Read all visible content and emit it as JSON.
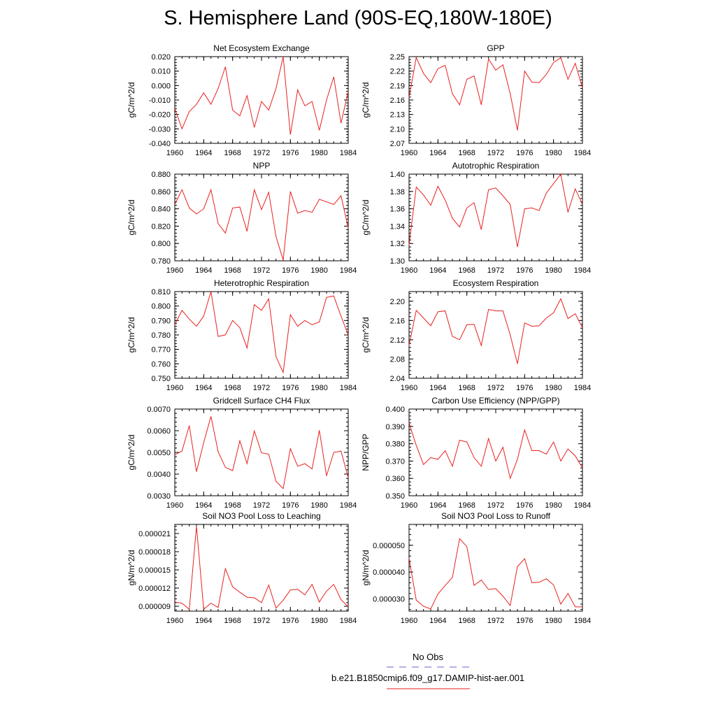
{
  "title": "S. Hemisphere Land (90S-EQ,180W-180E)",
  "series_color": "#e8211f",
  "obs_color": "#6666cc",
  "legend": {
    "obs_label": "No Obs",
    "case_label": "b.e21.B1850cmip6.f09_g17.DAMIP-hist-aer.001"
  },
  "chart_data": [
    {
      "type": "line",
      "title": "Net Ecosystem Exchange",
      "ylabel": "gC/m^2/d",
      "xlim": [
        1960,
        1984
      ],
      "xticks": [
        "1960",
        "1964",
        "1968",
        "1972",
        "1976",
        "1980",
        "1984"
      ],
      "ylim": [
        -0.04,
        0.02
      ],
      "yticks": [
        "-0.040",
        "-0.030",
        "-0.020",
        "-0.010",
        "0.000",
        "0.010",
        "0.020"
      ],
      "x": [
        1960,
        1961,
        1962,
        1963,
        1964,
        1965,
        1966,
        1967,
        1968,
        1969,
        1970,
        1971,
        1972,
        1973,
        1974,
        1975,
        1976,
        1977,
        1978,
        1979,
        1980,
        1981,
        1982,
        1983,
        1984
      ],
      "values": [
        -0.016,
        -0.03,
        -0.018,
        -0.013,
        -0.005,
        -0.013,
        -0.002,
        0.013,
        -0.017,
        -0.021,
        -0.007,
        -0.029,
        -0.011,
        -0.017,
        -0.002,
        0.02,
        -0.034,
        -0.003,
        -0.014,
        -0.011,
        -0.031,
        -0.01,
        0.006,
        -0.026,
        -0.004
      ]
    },
    {
      "type": "line",
      "title": "GPP",
      "ylabel": "gC/m^2/d",
      "xlim": [
        1960,
        1984
      ],
      "xticks": [
        "1960",
        "1964",
        "1968",
        "1972",
        "1976",
        "1980",
        "1984"
      ],
      "ylim": [
        2.07,
        2.25
      ],
      "yticks": [
        "2.07",
        "2.10",
        "2.13",
        "2.16",
        "2.19",
        "2.22",
        "2.25"
      ],
      "x": [
        1960,
        1961,
        1962,
        1963,
        1964,
        1965,
        1966,
        1967,
        1968,
        1969,
        1970,
        1971,
        1972,
        1973,
        1974,
        1975,
        1976,
        1977,
        1978,
        1979,
        1980,
        1981,
        1982,
        1983,
        1984
      ],
      "values": [
        2.165,
        2.248,
        2.215,
        2.196,
        2.225,
        2.232,
        2.173,
        2.15,
        2.203,
        2.21,
        2.15,
        2.245,
        2.222,
        2.233,
        2.173,
        2.097,
        2.22,
        2.197,
        2.196,
        2.213,
        2.238,
        2.248,
        2.203,
        2.236,
        2.185
      ]
    },
    {
      "type": "line",
      "title": "NPP",
      "ylabel": "gC/m^2/d",
      "xlim": [
        1960,
        1984
      ],
      "xticks": [
        "1960",
        "1964",
        "1968",
        "1972",
        "1976",
        "1980",
        "1984"
      ],
      "ylim": [
        0.78,
        0.88
      ],
      "yticks": [
        "0.780",
        "0.800",
        "0.820",
        "0.840",
        "0.860",
        "0.880"
      ],
      "x": [
        1960,
        1961,
        1962,
        1963,
        1964,
        1965,
        1966,
        1967,
        1968,
        1969,
        1970,
        1971,
        1972,
        1973,
        1974,
        1975,
        1976,
        1977,
        1978,
        1979,
        1980,
        1981,
        1982,
        1983,
        1984
      ],
      "values": [
        0.845,
        0.862,
        0.841,
        0.834,
        0.84,
        0.862,
        0.823,
        0.812,
        0.841,
        0.842,
        0.814,
        0.862,
        0.839,
        0.859,
        0.808,
        0.781,
        0.86,
        0.835,
        0.838,
        0.836,
        0.851,
        0.848,
        0.845,
        0.855,
        0.818
      ]
    },
    {
      "type": "line",
      "title": "Autotrophic Respiration",
      "ylabel": "gC/m^2/d",
      "xlim": [
        1960,
        1984
      ],
      "xticks": [
        "1960",
        "1964",
        "1968",
        "1972",
        "1976",
        "1980",
        "1984"
      ],
      "ylim": [
        1.3,
        1.4
      ],
      "yticks": [
        "1.30",
        "1.32",
        "1.34",
        "1.36",
        "1.38",
        "1.40"
      ],
      "x": [
        1960,
        1961,
        1962,
        1963,
        1964,
        1965,
        1966,
        1967,
        1968,
        1969,
        1970,
        1971,
        1972,
        1973,
        1974,
        1975,
        1976,
        1977,
        1978,
        1979,
        1980,
        1981,
        1982,
        1983,
        1984
      ],
      "values": [
        1.318,
        1.385,
        1.376,
        1.364,
        1.386,
        1.37,
        1.349,
        1.339,
        1.361,
        1.367,
        1.336,
        1.382,
        1.384,
        1.375,
        1.365,
        1.316,
        1.36,
        1.361,
        1.358,
        1.378,
        1.389,
        1.4,
        1.356,
        1.383,
        1.365
      ]
    },
    {
      "type": "line",
      "title": "Heterotrophic Respiration",
      "ylabel": "gC/m^2/d",
      "xlim": [
        1960,
        1984
      ],
      "xticks": [
        "1960",
        "1964",
        "1968",
        "1972",
        "1976",
        "1980",
        "1984"
      ],
      "ylim": [
        0.75,
        0.81
      ],
      "yticks": [
        "0.750",
        "0.760",
        "0.770",
        "0.780",
        "0.790",
        "0.800",
        "0.810"
      ],
      "x": [
        1960,
        1961,
        1962,
        1963,
        1964,
        1965,
        1966,
        1967,
        1968,
        1969,
        1970,
        1971,
        1972,
        1973,
        1974,
        1975,
        1976,
        1977,
        1978,
        1979,
        1980,
        1981,
        1982,
        1983,
        1984
      ],
      "values": [
        0.787,
        0.797,
        0.791,
        0.786,
        0.793,
        0.81,
        0.779,
        0.78,
        0.79,
        0.785,
        0.771,
        0.801,
        0.797,
        0.805,
        0.765,
        0.754,
        0.794,
        0.786,
        0.79,
        0.787,
        0.789,
        0.806,
        0.807,
        0.793,
        0.78
      ]
    },
    {
      "type": "line",
      "title": "Ecosystem Respiration",
      "ylabel": "gC/m^2/d",
      "xlim": [
        1960,
        1984
      ],
      "xticks": [
        "1960",
        "1964",
        "1968",
        "1972",
        "1976",
        "1980",
        "1984"
      ],
      "ylim": [
        2.04,
        2.22
      ],
      "yticks": [
        "2.04",
        "2.08",
        "2.12",
        "2.16",
        "2.20"
      ],
      "x": [
        1960,
        1961,
        1962,
        1963,
        1964,
        1965,
        1966,
        1967,
        1968,
        1969,
        1970,
        1971,
        1972,
        1973,
        1974,
        1975,
        1976,
        1977,
        1978,
        1979,
        1980,
        1981,
        1982,
        1983,
        1984
      ],
      "values": [
        2.108,
        2.181,
        2.165,
        2.149,
        2.178,
        2.18,
        2.127,
        2.12,
        2.151,
        2.152,
        2.108,
        2.183,
        2.18,
        2.18,
        2.13,
        2.07,
        2.155,
        2.148,
        2.149,
        2.165,
        2.176,
        2.205,
        2.164,
        2.174,
        2.145
      ]
    },
    {
      "type": "line",
      "title": "Gridcell Surface CH4 Flux",
      "ylabel": "gC/m^2/d",
      "xlim": [
        1960,
        1984
      ],
      "xticks": [
        "1960",
        "1964",
        "1968",
        "1972",
        "1976",
        "1980",
        "1984"
      ],
      "ylim": [
        0.003,
        0.007
      ],
      "yticks": [
        "0.0030",
        "0.0040",
        "0.0050",
        "0.0060",
        "0.0070"
      ],
      "x": [
        1960,
        1961,
        1962,
        1963,
        1964,
        1965,
        1966,
        1967,
        1968,
        1969,
        1970,
        1971,
        1972,
        1973,
        1974,
        1975,
        1976,
        1977,
        1978,
        1979,
        1980,
        1981,
        1982,
        1983,
        1984
      ],
      "values": [
        0.00489,
        0.00506,
        0.00624,
        0.00411,
        0.00545,
        0.00666,
        0.00503,
        0.00431,
        0.00416,
        0.00554,
        0.00448,
        0.00599,
        0.00498,
        0.00492,
        0.00367,
        0.00333,
        0.00517,
        0.00436,
        0.00448,
        0.00424,
        0.00602,
        0.00392,
        0.005,
        0.00506,
        0.00383
      ]
    },
    {
      "type": "line",
      "title": "Carbon Use Efficiency (NPP/GPP)",
      "ylabel": "NPP/GPP",
      "xlim": [
        1960,
        1984
      ],
      "xticks": [
        "1960",
        "1964",
        "1968",
        "1972",
        "1976",
        "1980",
        "1984"
      ],
      "ylim": [
        0.35,
        0.4
      ],
      "yticks": [
        "0.350",
        "0.360",
        "0.370",
        "0.380",
        "0.390",
        "0.400"
      ],
      "x": [
        1960,
        1961,
        1962,
        1963,
        1964,
        1965,
        1966,
        1967,
        1968,
        1969,
        1970,
        1971,
        1972,
        1973,
        1974,
        1975,
        1976,
        1977,
        1978,
        1979,
        1980,
        1981,
        1982,
        1983,
        1984
      ],
      "values": [
        0.392,
        0.379,
        0.368,
        0.372,
        0.371,
        0.376,
        0.367,
        0.382,
        0.381,
        0.372,
        0.367,
        0.383,
        0.37,
        0.378,
        0.36,
        0.371,
        0.388,
        0.376,
        0.376,
        0.374,
        0.381,
        0.37,
        0.377,
        0.373,
        0.366
      ]
    },
    {
      "type": "line",
      "title": "Soil NO3 Pool Loss to Leaching",
      "ylabel": "gN/m^2/d",
      "xlim": [
        1960,
        1984
      ],
      "xticks": [
        "1960",
        "1964",
        "1968",
        "1972",
        "1976",
        "1980",
        "1984"
      ],
      "ylim": [
        8.2e-06,
        2.25e-05
      ],
      "yticks": [
        "0.000009",
        "0.000012",
        "0.000015",
        "0.000018",
        "0.000021"
      ],
      "x": [
        1960,
        1961,
        1962,
        1963,
        1964,
        1965,
        1966,
        1967,
        1968,
        1969,
        1970,
        1971,
        1972,
        1973,
        1974,
        1975,
        1976,
        1977,
        1978,
        1979,
        1980,
        1981,
        1982,
        1983,
        1984
      ],
      "values": [
        9.7e-06,
        9.5e-06,
        8.5e-06,
        2.22e-05,
        8.5e-06,
        9.5e-06,
        8.8e-06,
        1.52e-05,
        1.22e-05,
        1.13e-05,
        1.05e-05,
        1.04e-05,
        9.6e-06,
        1.25e-05,
        8.7e-06,
        1e-05,
        1.17e-05,
        1.18e-05,
        1.09e-05,
        1.26e-05,
        9.7e-06,
        1.15e-05,
        1.26e-05,
        1.01e-05,
        8.9e-06
      ]
    },
    {
      "type": "line",
      "title": "Soil NO3 Pool Loss to Runoff",
      "ylabel": "gN/m^2/d",
      "xlim": [
        1960,
        1984
      ],
      "xticks": [
        "1960",
        "1964",
        "1968",
        "1972",
        "1976",
        "1980",
        "1984"
      ],
      "ylim": [
        2.54e-05,
        5.78e-05
      ],
      "yticks": [
        "0.000030",
        "0.000040",
        "0.000050"
      ],
      "x": [
        1960,
        1961,
        1962,
        1963,
        1964,
        1965,
        1966,
        1967,
        1968,
        1969,
        1970,
        1971,
        1972,
        1973,
        1974,
        1975,
        1976,
        1977,
        1978,
        1979,
        1980,
        1981,
        1982,
        1983,
        1984
      ],
      "values": [
        4.52e-05,
        2.95e-05,
        2.72e-05,
        2.62e-05,
        3.18e-05,
        3.5e-05,
        3.8e-05,
        5.25e-05,
        4.95e-05,
        3.5e-05,
        3.7e-05,
        3.35e-05,
        3.38e-05,
        3.1e-05,
        2.75e-05,
        4.2e-05,
        4.5e-05,
        3.6e-05,
        3.62e-05,
        3.75e-05,
        3.52e-05,
        2.8e-05,
        3.2e-05,
        2.7e-05,
        2.7e-05
      ]
    }
  ]
}
